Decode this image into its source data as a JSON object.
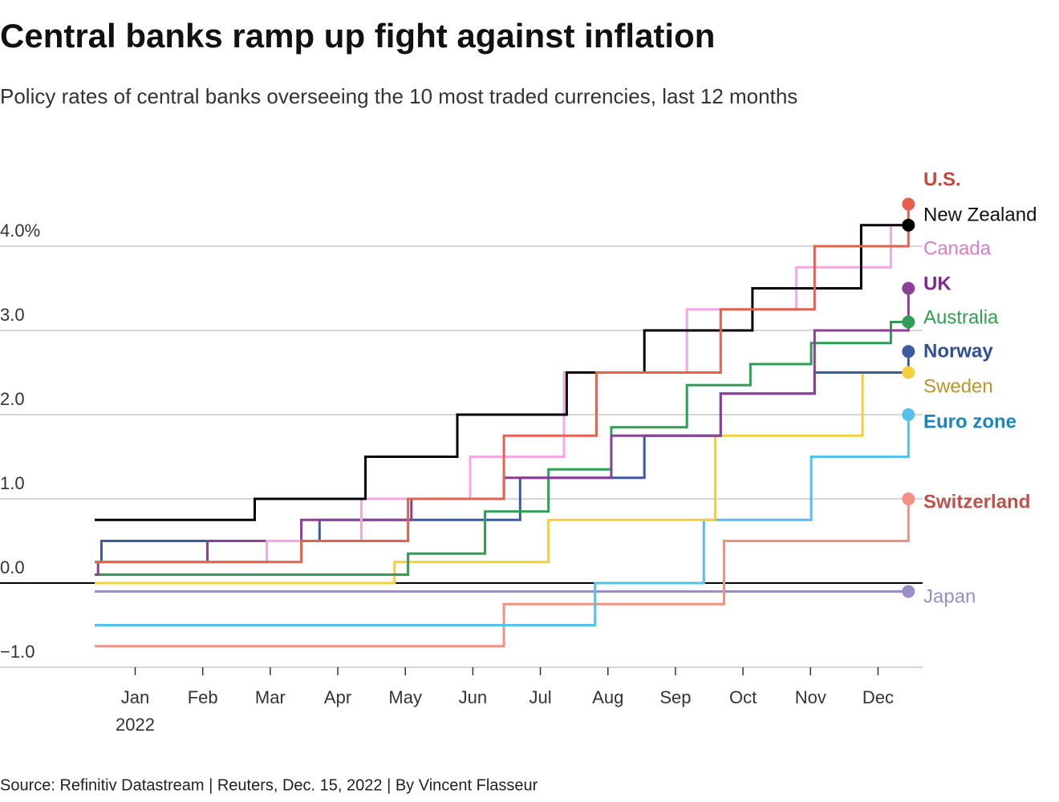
{
  "chart_data": {
    "type": "line",
    "step": true,
    "title": "Central banks ramp up fight against inflation",
    "subtitle": "Policy rates of central banks overseeing the 10 most traded currencies, last 12 months",
    "source": "Source: Refinitiv Datastream | Reuters, Dec. 15, 2022 | By Vincent Flasseur",
    "x_year": "2022",
    "xlim": [
      -0.6,
      11.66
    ],
    "xticks": [
      {
        "value": 0,
        "label": "Jan"
      },
      {
        "value": 1,
        "label": "Feb"
      },
      {
        "value": 2,
        "label": "Mar"
      },
      {
        "value": 3,
        "label": "Apr"
      },
      {
        "value": 4,
        "label": "May"
      },
      {
        "value": 5,
        "label": "Jun"
      },
      {
        "value": 6,
        "label": "Jul"
      },
      {
        "value": 7,
        "label": "Aug"
      },
      {
        "value": 8,
        "label": "Sep"
      },
      {
        "value": 9,
        "label": "Oct"
      },
      {
        "value": 10,
        "label": "Nov"
      },
      {
        "value": 11,
        "label": "Dec"
      }
    ],
    "ylim": [
      -1,
      4.6
    ],
    "yticks": [
      {
        "value": 4,
        "label": "4.0%"
      },
      {
        "value": 3,
        "label": "3.0"
      },
      {
        "value": 2,
        "label": "2.0"
      },
      {
        "value": 1,
        "label": "1.0"
      },
      {
        "value": 0,
        "label": "0.0"
      },
      {
        "value": -1,
        "label": "−1.0"
      }
    ],
    "grid": true,
    "series": [
      {
        "name": "U.S.",
        "color": "#e5604d",
        "label_color": "#c9473a",
        "label_bold": true,
        "end_marker": true,
        "x": [
          -0.6,
          2.46,
          4.04,
          5.46,
          6.83,
          8.67,
          10.06,
          11.45
        ],
        "values": [
          0.25,
          0.5,
          1.0,
          1.75,
          2.5,
          3.25,
          4.0,
          4.5
        ]
      },
      {
        "name": "New Zealand",
        "color": "#000000",
        "label_color": "#111111",
        "label_bold": false,
        "end_marker": true,
        "x": [
          -0.6,
          1.77,
          3.41,
          4.77,
          6.39,
          7.54,
          9.14,
          10.75,
          11.45
        ],
        "values": [
          0.75,
          1.0,
          1.5,
          2.0,
          2.5,
          3.0,
          3.5,
          4.25,
          4.25
        ]
      },
      {
        "name": "Canada",
        "color": "#f4a6e6",
        "label_color": "#d77ec6",
        "label_bold": false,
        "end_marker": false,
        "x": [
          -0.6,
          1.95,
          3.35,
          4.96,
          6.35,
          8.17,
          9.79,
          11.19,
          11.45
        ],
        "values": [
          0.25,
          0.5,
          1.0,
          1.5,
          2.5,
          3.25,
          3.75,
          4.25,
          4.25
        ]
      },
      {
        "name": "UK",
        "color": "#8b3f96",
        "label_color": "#7b2f87",
        "label_bold": true,
        "end_marker": true,
        "x": [
          -0.6,
          -0.55,
          1.07,
          2.46,
          4.09,
          5.46,
          7.05,
          8.67,
          10.06,
          11.45
        ],
        "values": [
          0.1,
          0.25,
          0.5,
          0.75,
          1.0,
          1.25,
          1.75,
          2.25,
          3.0,
          3.5
        ]
      },
      {
        "name": "Australia",
        "color": "#2e9e55",
        "label_color": "#2e9e55",
        "label_bold": false,
        "end_marker": true,
        "x": [
          -0.6,
          4.04,
          5.18,
          6.12,
          7.05,
          8.17,
          9.11,
          10.01,
          11.19,
          11.45
        ],
        "values": [
          0.1,
          0.35,
          0.85,
          1.35,
          1.85,
          2.35,
          2.6,
          2.85,
          3.1,
          3.1
        ]
      },
      {
        "name": "Norway",
        "color": "#3a5ba0",
        "label_color": "#2f4f97",
        "label_bold": true,
        "end_marker": true,
        "x": [
          -0.6,
          -0.5,
          2.73,
          5.7,
          7.54,
          8.67,
          10.06,
          11.45
        ],
        "values": [
          0.25,
          0.5,
          0.75,
          1.25,
          1.75,
          2.25,
          2.5,
          2.75
        ]
      },
      {
        "name": "Sweden",
        "color": "#f5cf3a",
        "label_color": "#b8962a",
        "label_bold": false,
        "end_marker": true,
        "x": [
          -0.6,
          3.84,
          6.12,
          8.59,
          10.77,
          11.45
        ],
        "values": [
          0,
          0.25,
          0.75,
          1.75,
          2.5,
          2.5
        ]
      },
      {
        "name": "Euro zone",
        "color": "#56bfeb",
        "label_color": "#1a86b8",
        "label_bold": true,
        "end_marker": true,
        "x": [
          -0.6,
          6.81,
          8.42,
          10.01,
          11.45
        ],
        "values": [
          -0.5,
          0,
          0.75,
          1.5,
          2.0
        ]
      },
      {
        "name": "Switzerland",
        "color": "#f49080",
        "label_color": "#c0504a",
        "label_bold": true,
        "end_marker": true,
        "x": [
          -0.6,
          5.46,
          8.72,
          11.45
        ],
        "values": [
          -0.75,
          -0.25,
          0.5,
          1.0
        ]
      },
      {
        "name": "Japan",
        "color": "#9b8ec4",
        "label_color": "#9b8ec4",
        "label_bold": false,
        "end_marker": true,
        "x": [
          -0.6,
          11.45
        ],
        "values": [
          -0.1,
          -0.1
        ]
      }
    ]
  }
}
